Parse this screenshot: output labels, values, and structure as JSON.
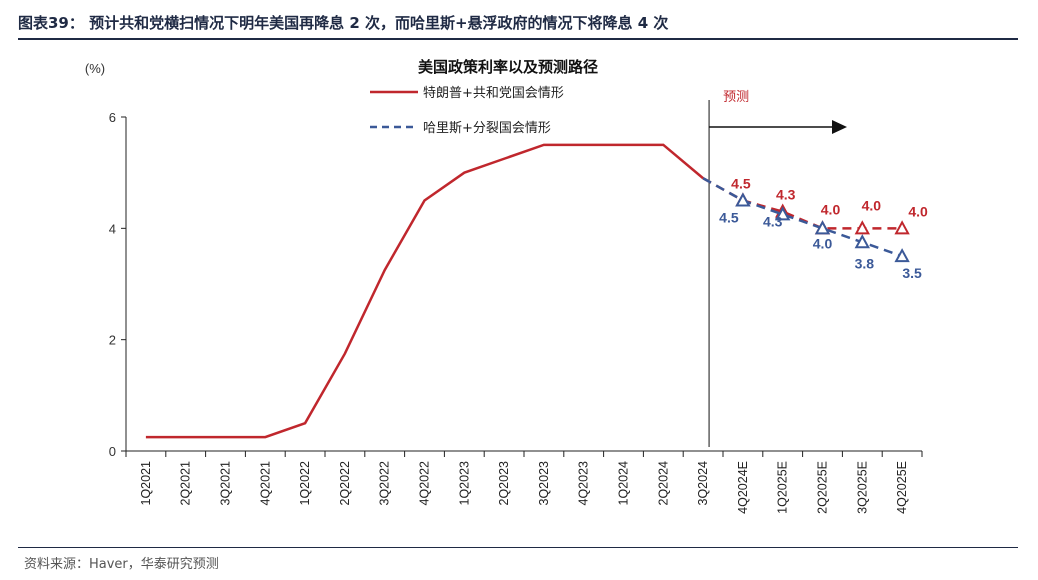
{
  "header": {
    "text": "图表39： 预计共和党横扫情况下明年美国再降息 2 次，而哈里斯+悬浮政府的情况下将降息 4 次"
  },
  "footer": {
    "source": "资料来源：Haver，华泰研究预测"
  },
  "colors": {
    "trump": "#c0272d",
    "harris": "#3b5998",
    "axis": "#222222",
    "header": "#1f2a44"
  },
  "chart_data": {
    "type": "line",
    "title": "美国政策利率以及预测路径",
    "ylabel": "(%)",
    "ylim": [
      0,
      6
    ],
    "yticks": [
      "0",
      "2",
      "4",
      "6"
    ],
    "grid": false,
    "forecast_label": "预测",
    "categories": [
      "1Q2021",
      "2Q2021",
      "3Q2021",
      "4Q2021",
      "1Q2022",
      "2Q2022",
      "3Q2022",
      "4Q2022",
      "1Q2023",
      "2Q2023",
      "3Q2023",
      "4Q2023",
      "1Q2024",
      "2Q2024",
      "3Q2024",
      "4Q2024E",
      "1Q2025E",
      "2Q2025E",
      "3Q2025E",
      "4Q2025E"
    ],
    "series": [
      {
        "name": "特朗普+共和党国会情形",
        "key": "trump",
        "values": [
          0.25,
          0.25,
          0.25,
          0.25,
          0.5,
          1.75,
          3.25,
          4.5,
          5.0,
          5.25,
          5.5,
          5.5,
          5.5,
          5.5,
          4.9,
          4.5,
          4.3,
          4.0,
          4.0,
          4.0
        ],
        "labels": [
          "",
          "",
          "",
          "",
          "",
          "",
          "",
          "",
          "",
          "",
          "",
          "",
          "",
          "",
          "",
          "4.5",
          "4.3",
          "4.0",
          "4.0",
          "4.0"
        ]
      },
      {
        "name": "哈里斯+分裂国会情形",
        "key": "harris",
        "values": [
          null,
          null,
          null,
          null,
          null,
          null,
          null,
          null,
          null,
          null,
          null,
          null,
          null,
          null,
          4.9,
          4.5,
          4.25,
          4.0,
          3.75,
          3.5
        ],
        "labels": [
          "",
          "",
          "",
          "",
          "",
          "",
          "",
          "",
          "",
          "",
          "",
          "",
          "",
          "",
          "",
          "4.5",
          "4.3",
          "4.0",
          "3.8",
          "3.5"
        ]
      }
    ]
  }
}
